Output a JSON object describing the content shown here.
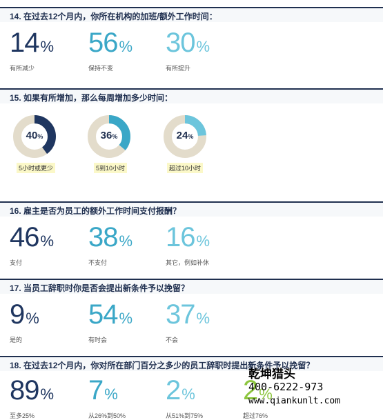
{
  "q14": {
    "title": "14. 在过去12个月内，你所在机构的加班/额外工作时间：",
    "items": [
      {
        "value": "14",
        "unit": "%",
        "label": "有所减少"
      },
      {
        "value": "56",
        "unit": "%",
        "label": "保持不变"
      },
      {
        "value": "30",
        "unit": "%",
        "label": "有所提升"
      }
    ]
  },
  "q15": {
    "title": "15. 如果有所增加，那么每周增加多少时间：",
    "items": [
      {
        "value": "40",
        "unit": "%",
        "label": "5小时或更少",
        "fraction": 0.4
      },
      {
        "value": "36",
        "unit": "%",
        "label": "5到10小时",
        "fraction": 0.36
      },
      {
        "value": "24",
        "unit": "%",
        "label": "超过10小时",
        "fraction": 0.24
      }
    ]
  },
  "q16": {
    "title": "16. 雇主是否为员工的额外工作时间支付报酬？",
    "items": [
      {
        "value": "46",
        "unit": "%",
        "label": "支付"
      },
      {
        "value": "38",
        "unit": "%",
        "label": "不支付"
      },
      {
        "value": "16",
        "unit": "%",
        "label": "其它，例如补休"
      }
    ]
  },
  "q17": {
    "title": "17. 当员工辞职时你是否会提出新条件予以挽留？",
    "items": [
      {
        "value": "9",
        "unit": "%",
        "label": "是的"
      },
      {
        "value": "54",
        "unit": "%",
        "label": "有时会"
      },
      {
        "value": "37",
        "unit": "%",
        "label": "不会"
      }
    ]
  },
  "q18": {
    "title": "18. 在过去12个月内，你对所在部门百分之多少的员工辞职时提出新条件予以挽留？",
    "items": [
      {
        "value": "89",
        "unit": "%",
        "label": "至多25%"
      },
      {
        "value": "7",
        "unit": "%",
        "label": "从26%到50%"
      },
      {
        "value": "2",
        "unit": "%",
        "label": "从51%到75%"
      },
      {
        "value": "2",
        "unit": "%",
        "label": "超过76%"
      }
    ]
  },
  "watermark": {
    "name": "乾坤猎头",
    "phone": "400-6222-973",
    "url": "www.qiankunlt.com"
  },
  "colors": {
    "navy": "#1f3660",
    "teal": "#3aa7c7",
    "light": "#6cc5dc",
    "green": "#8dc63f",
    "ring_bg": "#e3dccb"
  }
}
